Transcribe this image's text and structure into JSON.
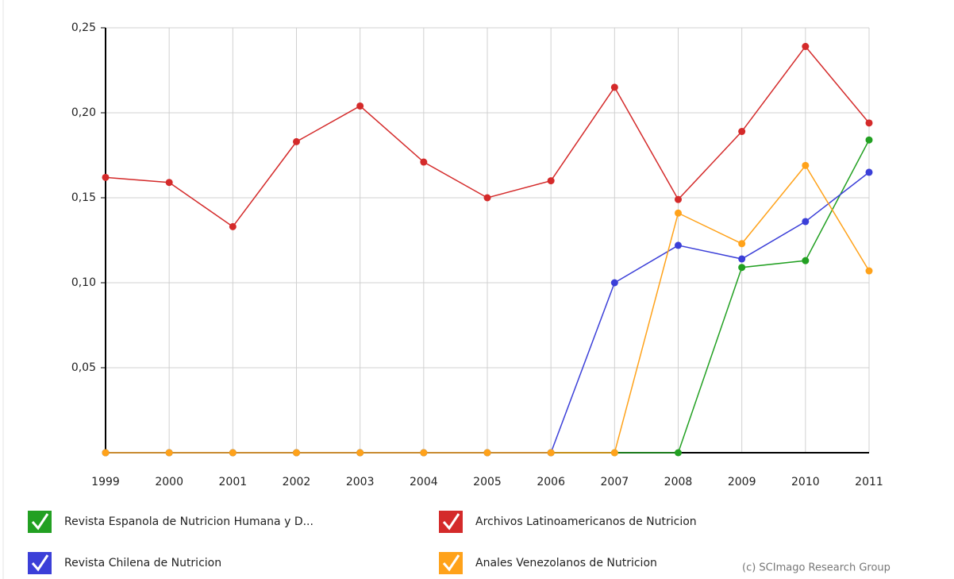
{
  "chart_data": {
    "type": "line",
    "categories": [
      "1999",
      "2000",
      "2001",
      "2002",
      "2003",
      "2004",
      "2005",
      "2006",
      "2007",
      "2008",
      "2009",
      "2010",
      "2011"
    ],
    "series": [
      {
        "name": "Revista Espanola de Nutricion Humana y D...",
        "color": "#22a022",
        "values": [
          0,
          0,
          0,
          0,
          0,
          0,
          0,
          0,
          0,
          0,
          0.109,
          0.113,
          0.184
        ]
      },
      {
        "name": "Archivos Latinoamericanos de Nutricion",
        "color": "#d42a2a",
        "values": [
          0.162,
          0.159,
          0.133,
          0.183,
          0.204,
          0.171,
          0.15,
          0.16,
          0.215,
          0.149,
          0.189,
          0.239,
          0.194
        ]
      },
      {
        "name": "Revista Chilena de Nutricion",
        "color": "#3b3fd8",
        "values": [
          0,
          0,
          0,
          0,
          0,
          0,
          0,
          0,
          0.1,
          0.122,
          0.114,
          0.136,
          0.165
        ]
      },
      {
        "name": "Anales Venezolanos de Nutricion",
        "color": "#ffa21a",
        "values": [
          0,
          0,
          0,
          0,
          0,
          0,
          0,
          0,
          0,
          0.141,
          0.123,
          0.169,
          0.107
        ]
      }
    ],
    "ylim": [
      0,
      0.25
    ],
    "yticks": [
      {
        "value": 0.05,
        "label": "0,05"
      },
      {
        "value": 0.1,
        "label": "0,10"
      },
      {
        "value": 0.15,
        "label": "0,15"
      },
      {
        "value": 0.2,
        "label": "0,20"
      },
      {
        "value": 0.25,
        "label": "0,25"
      }
    ],
    "grid": true,
    "credit": "(c) SCImago Research Group"
  }
}
